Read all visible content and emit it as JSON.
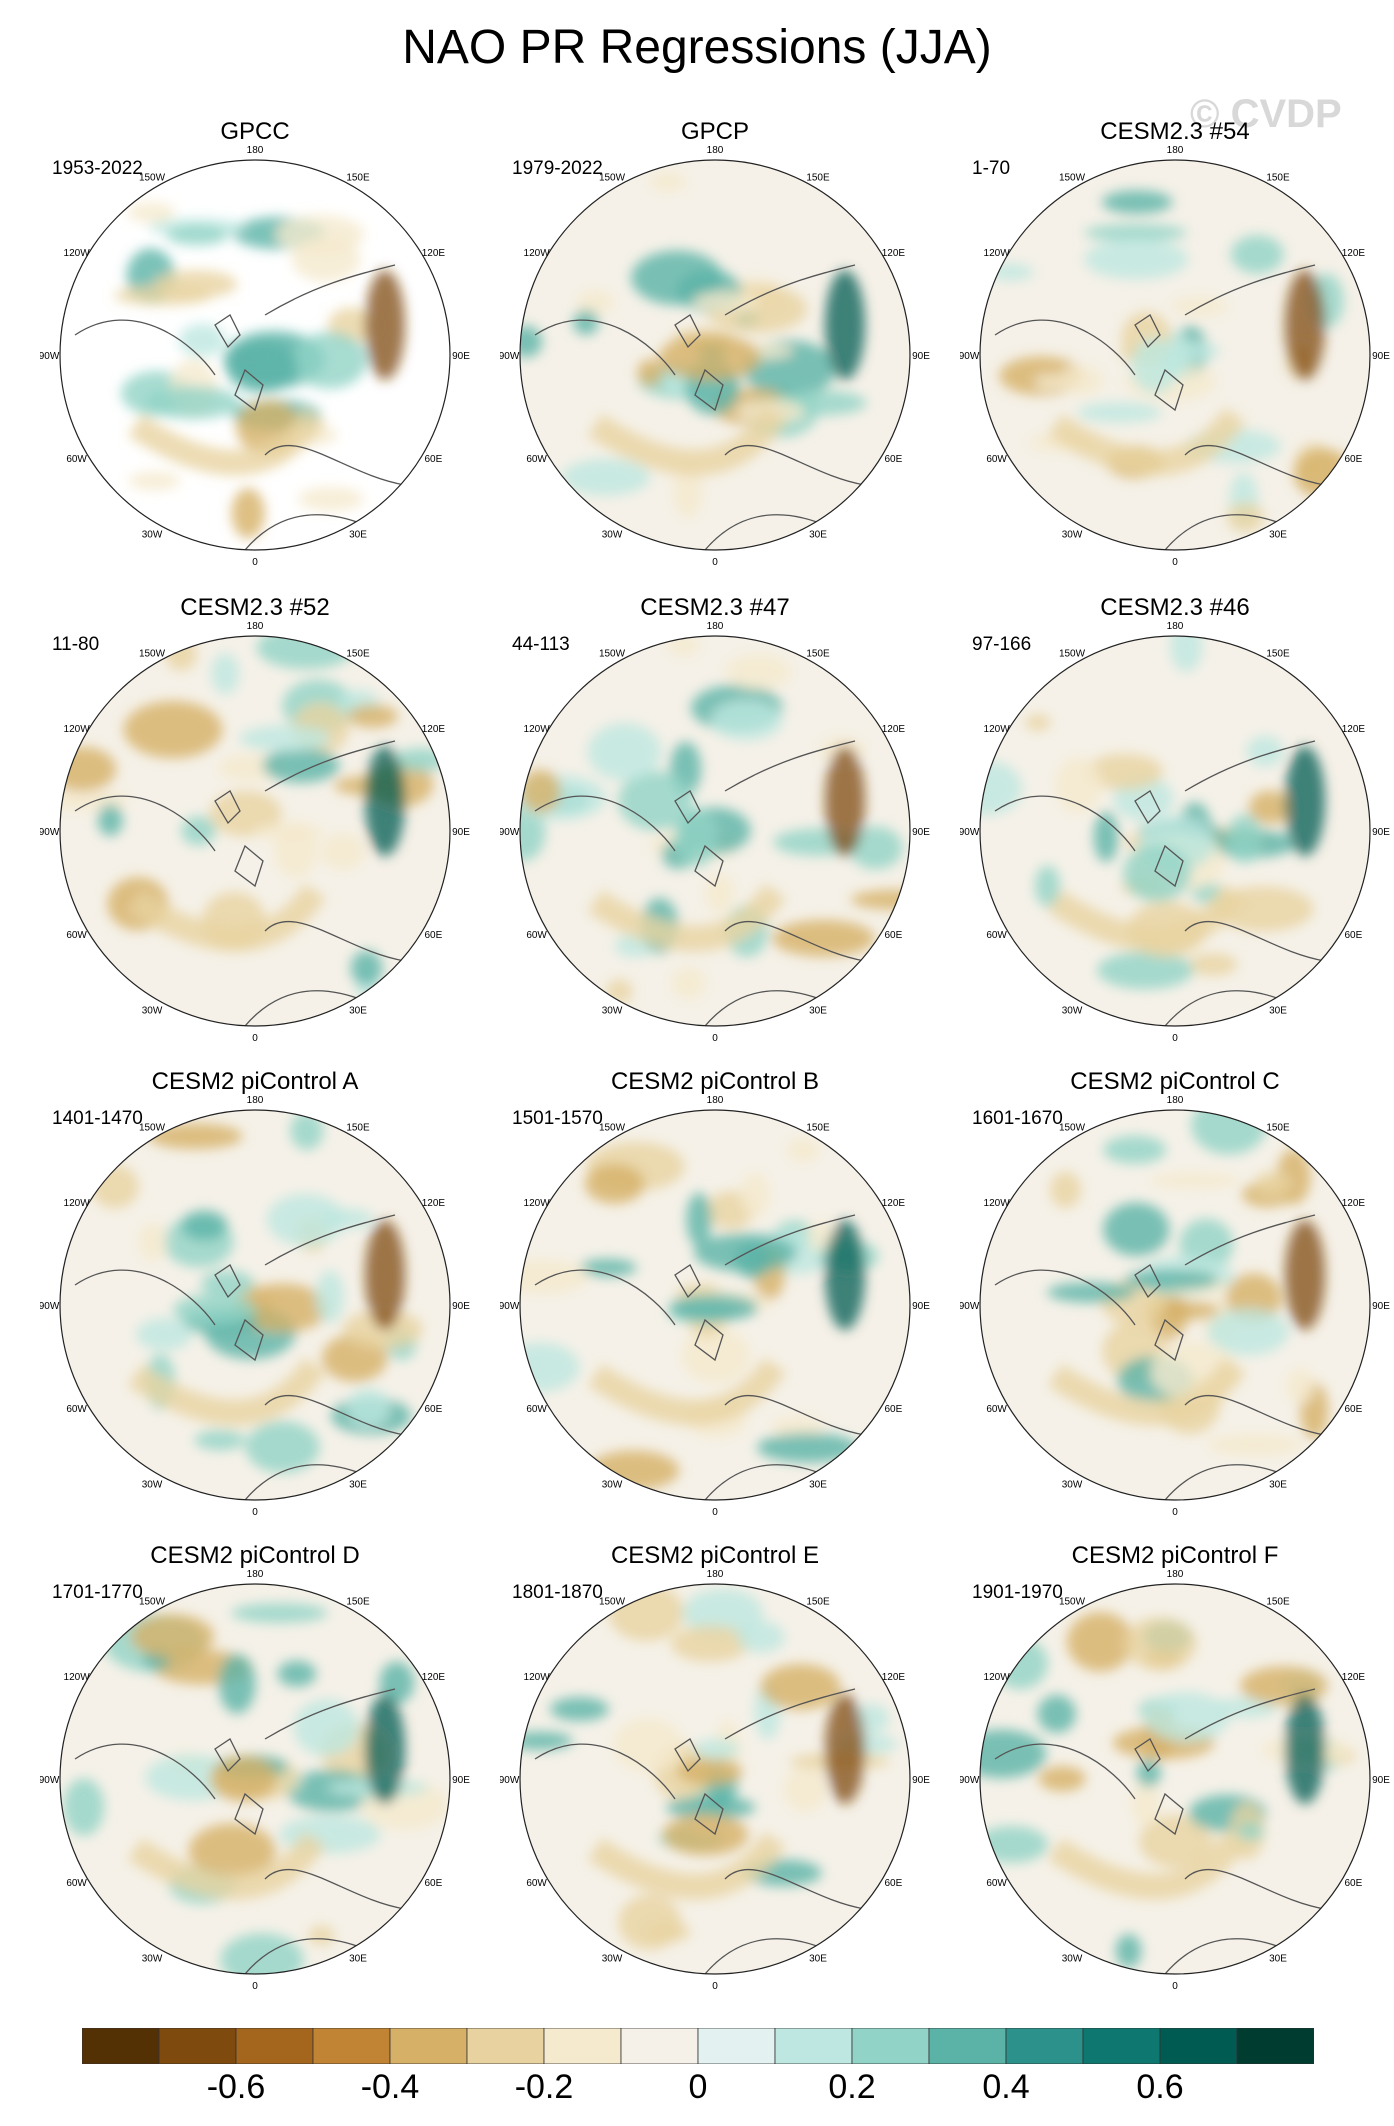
{
  "title": "NAO PR Regressions (JJA)",
  "watermark": "© CVDP",
  "panels": [
    {
      "title": "GPCC",
      "period": "1953-2022"
    },
    {
      "title": "GPCP",
      "period": "1979-2022"
    },
    {
      "title": "CESM2.3 #54",
      "period": "1-70"
    },
    {
      "title": "CESM2.3 #52",
      "period": "11-80"
    },
    {
      "title": "CESM2.3 #47",
      "period": "44-113"
    },
    {
      "title": "CESM2.3 #46",
      "period": "97-166"
    },
    {
      "title": "CESM2 piControl A",
      "period": "1401-1470"
    },
    {
      "title": "CESM2 piControl B",
      "period": "1501-1570"
    },
    {
      "title": "CESM2 piControl C",
      "period": "1601-1670"
    },
    {
      "title": "CESM2 piControl D",
      "period": "1701-1770"
    },
    {
      "title": "CESM2 piControl E",
      "period": "1801-1870"
    },
    {
      "title": "CESM2 piControl F",
      "period": "1901-1970"
    }
  ],
  "longitude_labels": [
    "180",
    "150E",
    "120E",
    "90E",
    "60E",
    "30E",
    "0",
    "30W",
    "60W",
    "90W",
    "120W",
    "150W"
  ],
  "colorbar": {
    "colors": [
      "#543005",
      "#7f4a0d",
      "#a4661d",
      "#c08434",
      "#d6b066",
      "#e8d3a0",
      "#f5eacd",
      "#f5f1e8",
      "#e3f2f0",
      "#bde7e0",
      "#91d3c6",
      "#5bb3a7",
      "#2b918a",
      "#0d7770",
      "#005c52",
      "#003c30"
    ],
    "tick_labels": [
      "-0.6",
      "-0.4",
      "-0.2",
      "0",
      "0.2",
      "0.4",
      "0.6"
    ]
  }
}
